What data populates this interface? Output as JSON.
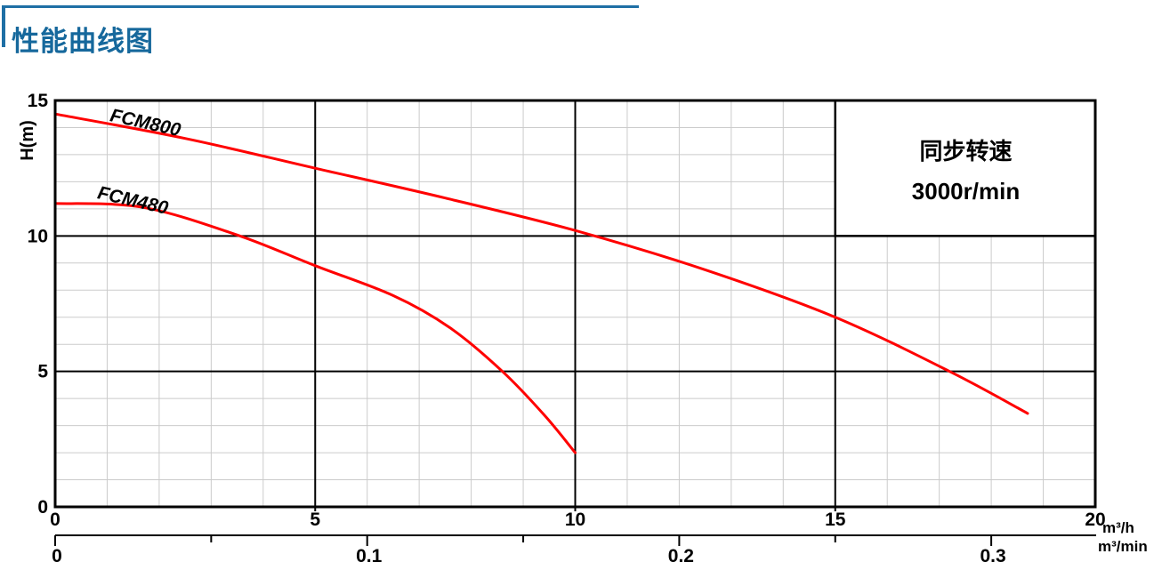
{
  "header": {
    "title": "性能曲线图",
    "title_color": "#16689c",
    "rule_color": "#1e6fa5"
  },
  "chart_data": {
    "type": "line",
    "title": "性能曲线图",
    "ylabel": "H(m)",
    "x_unit_primary": "m³/h",
    "x_unit_secondary": "m³/min",
    "xlim_primary": [
      0,
      20
    ],
    "ylim": [
      0,
      15
    ],
    "x_ticks_primary": [
      0,
      5,
      10,
      15,
      20
    ],
    "x_ticks_secondary": [
      0,
      0.1,
      0.2,
      0.3
    ],
    "x_minor_ticks_secondary": [
      0.05,
      0.15,
      0.25
    ],
    "y_ticks": [
      0,
      5,
      10,
      15
    ],
    "grid": {
      "minor_step": 1,
      "major_step": 5,
      "minor_color": "#cbcbcb",
      "major_color": "#000000"
    },
    "legend_position": "none",
    "series": [
      {
        "name": "FCM800",
        "color": "#ff0000",
        "points": [
          [
            0,
            14.5
          ],
          [
            2.5,
            13.6
          ],
          [
            5,
            12.5
          ],
          [
            7.5,
            11.4
          ],
          [
            10,
            10.2
          ],
          [
            12.5,
            8.75
          ],
          [
            15,
            7.0
          ],
          [
            17.2,
            5.0
          ],
          [
            18.7,
            3.45
          ]
        ]
      },
      {
        "name": "FCM480",
        "color": "#ff0000",
        "points": [
          [
            0,
            11.2
          ],
          [
            1.7,
            11.05
          ],
          [
            3.55,
            10.0
          ],
          [
            5,
            8.9
          ],
          [
            6.5,
            7.8
          ],
          [
            7.6,
            6.6
          ],
          [
            8.6,
            5.0
          ],
          [
            9.4,
            3.4
          ],
          [
            10,
            2.0
          ]
        ]
      }
    ],
    "annotation_box": {
      "lines": [
        "同步转速",
        "3000r/min"
      ],
      "x_range": [
        15,
        20
      ],
      "y_range": [
        10,
        15
      ]
    }
  }
}
